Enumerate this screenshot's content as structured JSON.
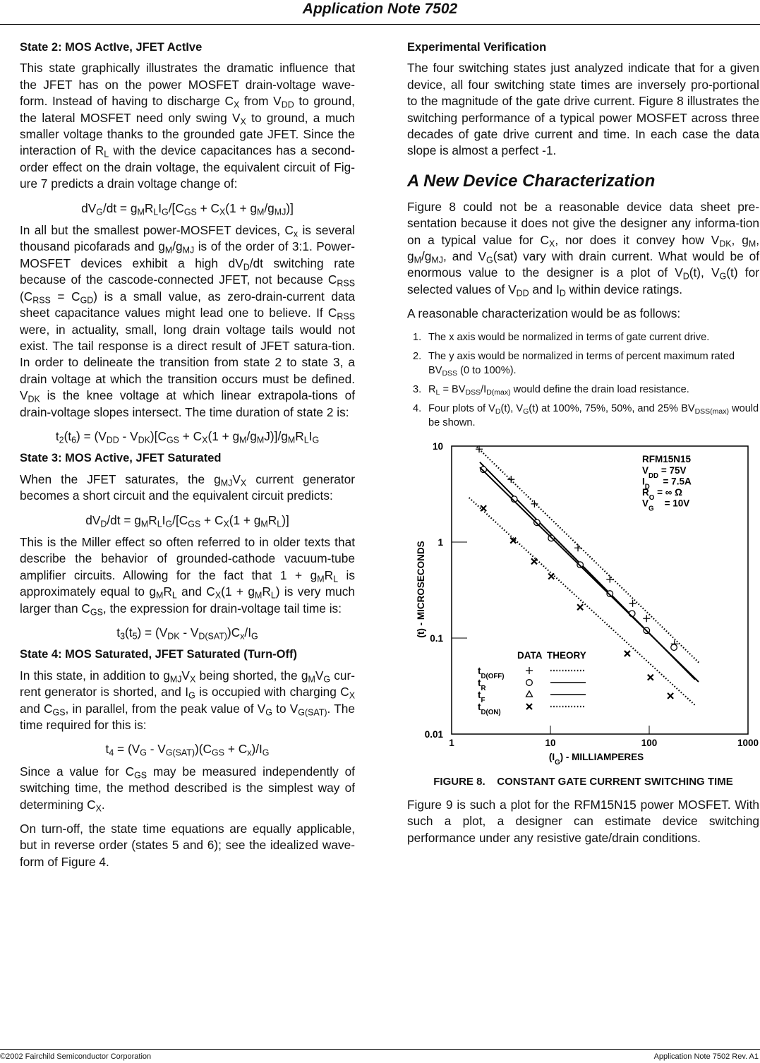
{
  "header": {
    "title": "Application Note 7502"
  },
  "left_column": [
    {
      "heading": [
        "State 2: MOS ActIve, JFET ActIve"
      ]
    },
    {
      "paragraph": [
        "This state graphically illustrates the dramatic influence that the JFET has on the power MOSFET drain-voltage wave-form. Instead of having to discharge C",
        {
          "sub": "X"
        },
        " from V",
        {
          "sub": "DD"
        },
        " to ground, the lateral MOSFET need only swing V",
        {
          "sub": "X"
        },
        " to ground, a much smaller voltage thanks to the grounded gate JFET. Since the interaction of R",
        {
          "sub": "L"
        },
        " with the device capacitances has a second-order effect on the drain voltage, the equivalent circuit of Fig-ure 7 predicts a drain voltage change of:"
      ]
    },
    {
      "equation": [
        "dV",
        {
          "sub": "G"
        },
        "/dt = g",
        {
          "sub": "M"
        },
        "R",
        {
          "sub": "L"
        },
        "I",
        {
          "sub": "G"
        },
        "/[C",
        {
          "sub": "GS"
        },
        " + C",
        {
          "sub": "X"
        },
        "(1 + g",
        {
          "sub": "M"
        },
        "/g",
        {
          "sub": "MJ"
        },
        ")]"
      ]
    },
    {
      "paragraph": [
        "In all but the smallest power-MOSFET devices, C",
        {
          "sub": "x"
        },
        " is several thousand picofarads and g",
        {
          "sub": "M"
        },
        "/g",
        {
          "sub": "MJ"
        },
        " is of the order of 3:1. Power-MOSFET devices exhibit a high dV",
        {
          "sub": "D"
        },
        "/dt switching rate because of the cascode-connected JFET, not because C",
        {
          "sub": "RSS"
        },
        " (C",
        {
          "sub": "RSS"
        },
        " = C",
        {
          "sub": "GD"
        },
        ") is a small value, as zero-drain-current data sheet capacitance values might lead one to believe. If C",
        {
          "sub": "RSS"
        },
        " were, in actuality, small, long drain voltage tails would not exist. The tail response is a direct result of JFET satura-tion. In order to delineate the transition from state 2 to state 3, a drain voltage at which the transition occurs must be defined. V",
        {
          "sub": "DK"
        },
        " is the knee voltage at which linear extrapola-tions of drain-voltage slopes intersect. The time duration of state 2 is:"
      ]
    },
    {
      "equation": [
        "t",
        {
          "sub": "2"
        },
        "(t",
        {
          "sub": "6"
        },
        ") = (V",
        {
          "sub": "DD"
        },
        " - V",
        {
          "sub": "DK"
        },
        ")[C",
        {
          "sub": "GS"
        },
        " + C",
        {
          "sub": "X"
        },
        "(1 + g",
        {
          "sub": "M"
        },
        "/g",
        {
          "sub": "M"
        },
        "J)]/g",
        {
          "sub": "M"
        },
        "R",
        {
          "sub": "L"
        },
        "I",
        {
          "sub": "G"
        }
      ]
    },
    {
      "heading": [
        "State 3: MOS Active, JFET Saturated"
      ]
    },
    {
      "paragraph": [
        "When the JFET saturates, the g",
        {
          "sub": "MJ"
        },
        "V",
        {
          "sub": "X"
        },
        " current generator becomes a short circuit and the equivalent circuit predicts:"
      ]
    },
    {
      "equation": [
        "dV",
        {
          "sub": "D"
        },
        "/dt = g",
        {
          "sub": "M"
        },
        "R",
        {
          "sub": "L"
        },
        "I",
        {
          "sub": "G"
        },
        "/[C",
        {
          "sub": "GS"
        },
        " + C",
        {
          "sub": "X"
        },
        "(1 + g",
        {
          "sub": "M"
        },
        "R",
        {
          "sub": "L"
        },
        ")]"
      ]
    },
    {
      "paragraph": [
        "This is the Miller effect so often referred to in older texts that describe the behavior of grounded-cathode vacuum-tube amplifier circuits. Allowing for the fact that 1 + g",
        {
          "sub": "M"
        },
        "R",
        {
          "sub": "L"
        },
        " is approximately equal to g",
        {
          "sub": "M"
        },
        "R",
        {
          "sub": "L"
        },
        " and C",
        {
          "sub": "X"
        },
        "(1 + g",
        {
          "sub": "M"
        },
        "R",
        {
          "sub": "L"
        },
        ") is very much larger than C",
        {
          "sub": "GS"
        },
        ", the expression for drain-voltage tail time is:"
      ]
    },
    {
      "equation": [
        "t",
        {
          "sub": "3"
        },
        "(t",
        {
          "sub": "5"
        },
        ") = (V",
        {
          "sub": "DK"
        },
        " - V",
        {
          "sub": "D(SAT)"
        },
        ")C",
        {
          "sub": "x"
        },
        "/I",
        {
          "sub": "G"
        }
      ]
    },
    {
      "heading": [
        "State 4: MOS Saturated, JFET Saturated (Turn-Off)"
      ]
    },
    {
      "paragraph": [
        "In this state, in addition to g",
        {
          "sub": "MJ"
        },
        "V",
        {
          "sub": "X"
        },
        " being shorted, the g",
        {
          "sub": "M"
        },
        "V",
        {
          "sub": "G"
        },
        " cur-rent generator is shorted, and I",
        {
          "sub": "G"
        },
        " is occupied with charging C",
        {
          "sub": "X"
        },
        " and C",
        {
          "sub": "GS"
        },
        ", in parallel, from the peak value of V",
        {
          "sub": "G"
        },
        " to V",
        {
          "sub": "G(SAT)"
        },
        ". The time required for this is:"
      ]
    },
    {
      "equation": [
        "t",
        {
          "sub": "4"
        },
        " = (V",
        {
          "sub": "G"
        },
        " - V",
        {
          "sub": "G(SAT)"
        },
        ")(C",
        {
          "sub": "GS"
        },
        " + C",
        {
          "sub": "x"
        },
        ")/I",
        {
          "sub": "G"
        }
      ]
    },
    {
      "paragraph": [
        "Since a value for C",
        {
          "sub": "GS"
        },
        " may be measured independently of switching time, the method described is the simplest way of determining C",
        {
          "sub": "X"
        },
        "."
      ]
    },
    {
      "paragraph": [
        "On turn-off, the state time equations are equally applicable, but in reverse order (states 5 and 6); see the idealized wave-form of Figure 4."
      ]
    }
  ],
  "right_column_top": [
    {
      "heading": [
        "Experimental Verification"
      ]
    },
    {
      "paragraph": [
        "The four switching states just analyzed indicate that for a given device, all four switching state times are inversely pro-portional to the magnitude of the gate drive current. Figure 8 illustrates the switching performance of a typical power MOSFET across three decades of gate drive current and time. In each case the data slope is almost a perfect -1."
      ]
    },
    {
      "big_heading": [
        "A New Device Characterization"
      ]
    },
    {
      "paragraph": [
        "Figure 8 could not be a reasonable device data sheet pre-sentation because it does not give the designer any informa-tion on a typical value for C",
        {
          "sub": "X"
        },
        ", nor does it convey how V",
        {
          "sub": "DK"
        },
        ", g",
        {
          "sub": "M"
        },
        ", g",
        {
          "sub": "M"
        },
        "/g",
        {
          "sub": "MJ"
        },
        ", and V",
        {
          "sub": "G"
        },
        "(sat) vary with drain current. What would be of enormous value to the designer is a plot of V",
        {
          "sub": "D"
        },
        "(t), V",
        {
          "sub": "G"
        },
        "(t) for selected values of V",
        {
          "sub": "DD"
        },
        " and I",
        {
          "sub": "D"
        },
        " within device ratings."
      ]
    },
    {
      "paragraph": [
        "A reasonable characterization would be as follows:"
      ]
    },
    {
      "list": [
        {
          "number": "1.",
          "text": [
            "The x axis would be normalized in terms of gate current drive."
          ]
        },
        {
          "number": "2.",
          "text": [
            "The y axis would be normalized in terms of percent maximum rated BV",
            {
              "sub": "DSS"
            },
            " (0 to 100%)."
          ]
        },
        {
          "number": "3.",
          "text": [
            "R",
            {
              "sub": "L"
            },
            " = BV",
            {
              "sub": "DSS"
            },
            "/I",
            {
              "sub": "D(max)"
            },
            " would define the drain load resistance."
          ]
        },
        {
          "number": "4.",
          "text": [
            "Four plots of V",
            {
              "sub": "D"
            },
            "(t), V",
            {
              "sub": "G"
            },
            "(t) at 100%, 75%, 50%, and 25% BV",
            {
              "sub": "DSS(max)"
            },
            " would be shown."
          ]
        }
      ]
    }
  ],
  "chart_data": {
    "type": "scatter",
    "log_x": true,
    "log_y": true,
    "xlim": [
      1,
      1000
    ],
    "ylim": [
      0.01,
      10
    ],
    "xticks": [
      1,
      10,
      100,
      1000
    ],
    "yticks": [
      10,
      1,
      0.1,
      0.01
    ],
    "xlabel": [
      "(I",
      {
        "sub": "G"
      },
      ") - MILLIAMPERES"
    ],
    "ylabel": "(t) - MICROSECONDS",
    "annotation": {
      "title": "RFM15N15",
      "lines": [
        [
          "V",
          {
            "sub": "DD"
          },
          " = 75V"
        ],
        [
          "I",
          {
            "sub": "D"
          },
          "     = 7.5A"
        ],
        [
          "R",
          {
            "sub": "O"
          },
          " = ∞ Ω"
        ],
        [
          "V",
          {
            "sub": "G"
          },
          "    = 10V"
        ]
      ]
    },
    "legend_headers": [
      "DATA",
      "THEORY"
    ],
    "series": [
      {
        "name": [
          "t",
          {
            "sub": "D(OFF)"
          }
        ],
        "marker": "plus",
        "color": "#000",
        "x": [
          1.9,
          4,
          6.9,
          19,
          40,
          68,
          94,
          180
        ],
        "values": [
          9.3,
          4.5,
          2.5,
          0.87,
          0.41,
          0.23,
          0.16,
          0.087
        ],
        "theory": {
          "style": "dotted",
          "x": [
            1.8,
            327
          ],
          "values": [
            9.8,
            0.054
          ]
        }
      },
      {
        "name": [
          "t",
          {
            "sub": "R"
          }
        ],
        "marker": "circle",
        "color": "#000",
        "x": [
          2.1,
          4.3,
          7.3,
          10.2,
          20,
          40,
          67,
          94,
          178
        ],
        "values": [
          5.7,
          2.8,
          1.6,
          1.1,
          0.58,
          0.29,
          0.18,
          0.12,
          0.08
        ],
        "theory": {
          "style": "solid",
          "x": [
            1.93,
            291
          ],
          "values": [
            6.8,
            0.037
          ]
        }
      },
      {
        "name": [
          "t",
          {
            "sub": "F"
          }
        ],
        "marker": "triangle",
        "color": "#000",
        "x": [],
        "values": [],
        "theory": {
          "style": "solid",
          "x": [
            1.93,
            316
          ],
          "values": [
            6.0,
            0.035
          ]
        }
      },
      {
        "name": [
          "t",
          {
            "sub": "D(ON)"
          }
        ],
        "marker": "cross",
        "color": "#000",
        "x": [
          2.1,
          4.2,
          6.85,
          10.2,
          20,
          60,
          103,
          164
        ],
        "values": [
          2.25,
          1.04,
          0.63,
          0.44,
          0.21,
          0.069,
          0.039,
          0.025
        ],
        "theory": {
          "style": "dotted",
          "x": [
            1.5,
            291
          ],
          "values": [
            2.9,
            0.02
          ]
        }
      }
    ]
  },
  "figure_caption": "FIGURE 8.    CONSTANT GATE CURRENT SWITCHING TIME",
  "right_column_bottom": [
    {
      "paragraph": [
        "Figure 9 is such a plot for the RFM15N15 power MOSFET. With such a plot, a designer can estimate device switching performance under any resistive gate/drain conditions."
      ]
    }
  ],
  "footer": {
    "left": "©2002 Fairchild Semiconductor Corporation",
    "right": "Application Note 7502 Rev. A1"
  }
}
